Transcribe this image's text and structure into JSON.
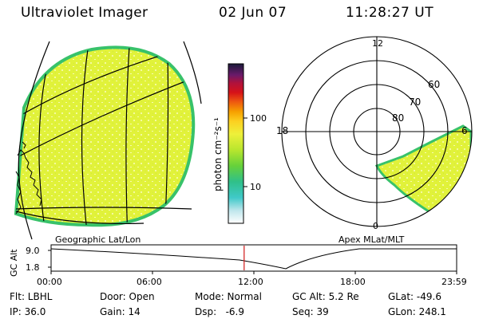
{
  "header": {
    "title": "Ultraviolet Imager",
    "date": "02 Jun 07",
    "time": "11:28:27 UT"
  },
  "colorbar": {
    "unit_label": "photon cm⁻²s⁻¹",
    "ticks": [
      "100",
      "10"
    ]
  },
  "polar_plot": {
    "mlt_labels": [
      "12",
      "18",
      "6",
      "0"
    ],
    "mlat_labels": [
      "60",
      "70",
      "80"
    ]
  },
  "map_labels": {
    "left": "Geographic Lat/Lon",
    "right": "Apex MLat/MLT"
  },
  "altitude_panel": {
    "ylabel": "GC Alt",
    "yticks": [
      "9.0",
      "1.8"
    ],
    "xticks": [
      "00:00",
      "06:00",
      "12:00",
      "18:00",
      "23:59"
    ],
    "current_time_fraction": 0.476
  },
  "info": {
    "flt": "Flt: LBHL",
    "ip": "IP: 36.0",
    "door": "Door: Open",
    "gain": "Gain: 14",
    "mode": "Mode: Normal",
    "dsp": "Dsp:   -6.9",
    "gcalt": "GC Alt: 5.2 Re",
    "seq": "Seq: 39",
    "glat": "GLat: -49.6",
    "glon": "GLon: 248.1"
  },
  "colors": {
    "aurora_fill": "#e1f23a",
    "aurora_edge": "#38c26a",
    "time_marker": "#d01818"
  }
}
